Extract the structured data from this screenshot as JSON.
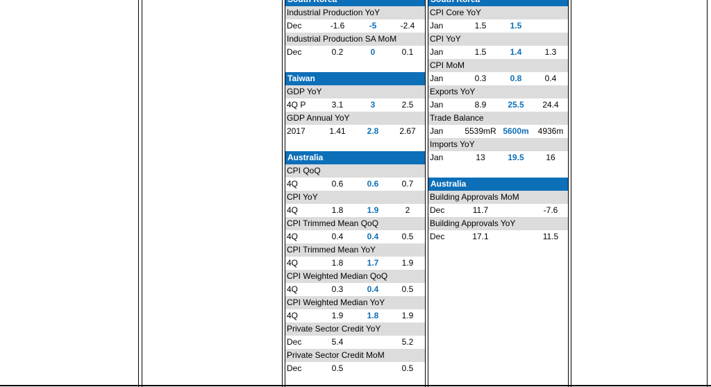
{
  "columns": [
    {
      "sections": [
        {
          "region": "South Korea",
          "indicators": [
            {
              "name": "Industrial Production YoY",
              "period": "Dec",
              "actual": "-1.6",
              "consensus": "-5",
              "prior": "-2.4"
            },
            {
              "name": "Industrial Production SA MoM",
              "period": "Dec",
              "actual": "0.2",
              "consensus": "0",
              "prior": "0.1"
            }
          ]
        },
        {
          "region": "Taiwan",
          "indicators": [
            {
              "name": "GDP YoY",
              "period": "4Q P",
              "actual": "3.1",
              "consensus": "3",
              "prior": "2.5"
            },
            {
              "name": "GDP Annual YoY",
              "period": "2017",
              "actual": "1.41",
              "consensus": "2.8",
              "prior": "2.67"
            }
          ]
        },
        {
          "region": "Australia",
          "indicators": [
            {
              "name": "CPI QoQ",
              "period": "4Q",
              "actual": "0.6",
              "consensus": "0.6",
              "prior": "0.7"
            },
            {
              "name": "CPI YoY",
              "period": "4Q",
              "actual": "1.8",
              "consensus": "1.9",
              "prior": "2"
            },
            {
              "name": "CPI Trimmed Mean QoQ",
              "period": "4Q",
              "actual": "0.4",
              "consensus": "0.4",
              "prior": "0.5"
            },
            {
              "name": "CPI Trimmed Mean YoY",
              "period": "4Q",
              "actual": "1.8",
              "consensus": "1.7",
              "prior": "1.9"
            },
            {
              "name": "CPI Weighted Median QoQ",
              "period": "4Q",
              "actual": "0.3",
              "consensus": "0.4",
              "prior": "0.5"
            },
            {
              "name": "CPI Weighted Median YoY",
              "period": "4Q",
              "actual": "1.9",
              "consensus": "1.8",
              "prior": "1.9"
            },
            {
              "name": "Private Sector Credit YoY",
              "period": "Dec",
              "actual": "5.4",
              "consensus": "",
              "prior": "5.2"
            },
            {
              "name": "Private Sector Credit MoM",
              "period": "Dec",
              "actual": "0.5",
              "consensus": "",
              "prior": "0.5"
            }
          ]
        }
      ]
    },
    {
      "sections": [
        {
          "region": "South Korea",
          "indicators": [
            {
              "name": "CPI Core YoY",
              "period": "Jan",
              "actual": "1.5",
              "consensus": "1.5",
              "prior": ""
            },
            {
              "name": "CPI YoY",
              "period": "Jan",
              "actual": "1.5",
              "consensus": "1.4",
              "prior": "1.3"
            },
            {
              "name": "CPI MoM",
              "period": "Jan",
              "actual": "0.3",
              "consensus": "0.8",
              "prior": "0.4"
            },
            {
              "name": "Exports YoY",
              "period": "Jan",
              "actual": "8.9",
              "consensus": "25.5",
              "prior": "24.4"
            },
            {
              "name": "Trade Balance",
              "period": "Jan",
              "actual": "5539mR",
              "consensus": "5600m",
              "prior": "4936m"
            },
            {
              "name": "Imports YoY",
              "period": "Jan",
              "actual": "13",
              "consensus": "19.5",
              "prior": "16"
            }
          ]
        },
        {
          "region": "Australia",
          "indicators": [
            {
              "name": "Building Approvals MoM",
              "period": "Dec",
              "actual": "11.7",
              "consensus": "",
              "prior": "-7.6"
            },
            {
              "name": "Building Approvals YoY",
              "period": "Dec",
              "actual": "17.1",
              "consensus": "",
              "prior": "11.5"
            }
          ]
        }
      ]
    }
  ]
}
